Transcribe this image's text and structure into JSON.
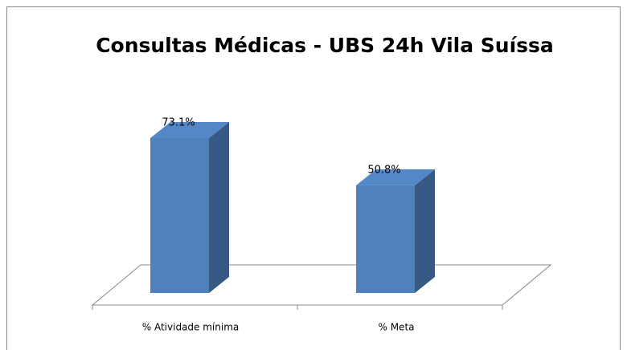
{
  "chart_data": {
    "type": "bar3d",
    "title": "Consultas Médicas - UBS 24h Vila Suíssa",
    "categories": [
      "% Atividade mínima",
      "% Meta"
    ],
    "values": [
      73.1,
      50.8
    ],
    "value_labels": [
      "73.1%",
      "50.8%"
    ],
    "color": "#4f81bd"
  }
}
